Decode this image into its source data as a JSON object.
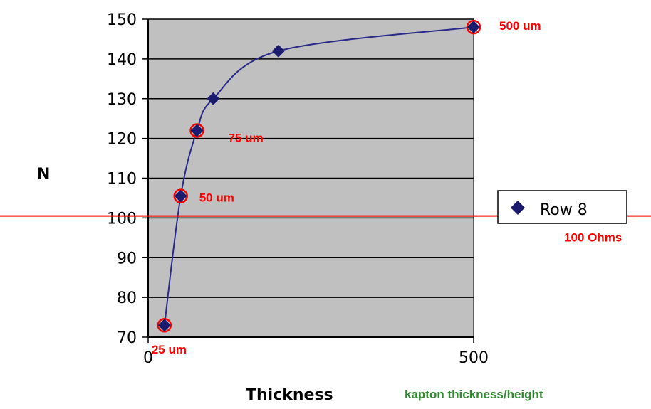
{
  "chart_data": {
    "type": "scatter",
    "title": "",
    "ylabel": "N",
    "xlabel": "Thickness",
    "x_note": "kapton thickness/height",
    "xlim": [
      0,
      500
    ],
    "ylim": [
      70,
      150
    ],
    "yticks": [
      "70",
      "80",
      "90",
      "100",
      "110",
      "120",
      "130",
      "140",
      "150"
    ],
    "xticks": [
      "0",
      "500"
    ],
    "grid": "horizontal",
    "legend": {
      "position": "right",
      "label": "Row 8"
    },
    "series": [
      {
        "name": "Row 8",
        "color": "#1a1a6e",
        "points": [
          {
            "x": 25,
            "y": 73
          },
          {
            "x": 50,
            "y": 105.5
          },
          {
            "x": 75,
            "y": 122
          },
          {
            "x": 100,
            "y": 130
          },
          {
            "x": 200,
            "y": 142
          },
          {
            "x": 500,
            "y": 148
          }
        ]
      }
    ],
    "highlighted_points": [
      {
        "x": 25,
        "y": 73,
        "label": "25 um"
      },
      {
        "x": 50,
        "y": 105.5,
        "label": "50 um"
      },
      {
        "x": 75,
        "y": 122,
        "label": "75 um"
      },
      {
        "x": 500,
        "y": 148,
        "label": "500 um"
      }
    ],
    "reference_line": {
      "y": 100.5,
      "label": "100 Ohms",
      "color": "#ff0000"
    },
    "colors": {
      "plot_bg": "#c0c0c0",
      "marker": "#1a1a6e",
      "highlight": "#ff0000",
      "note": "#2e8b2e"
    }
  }
}
